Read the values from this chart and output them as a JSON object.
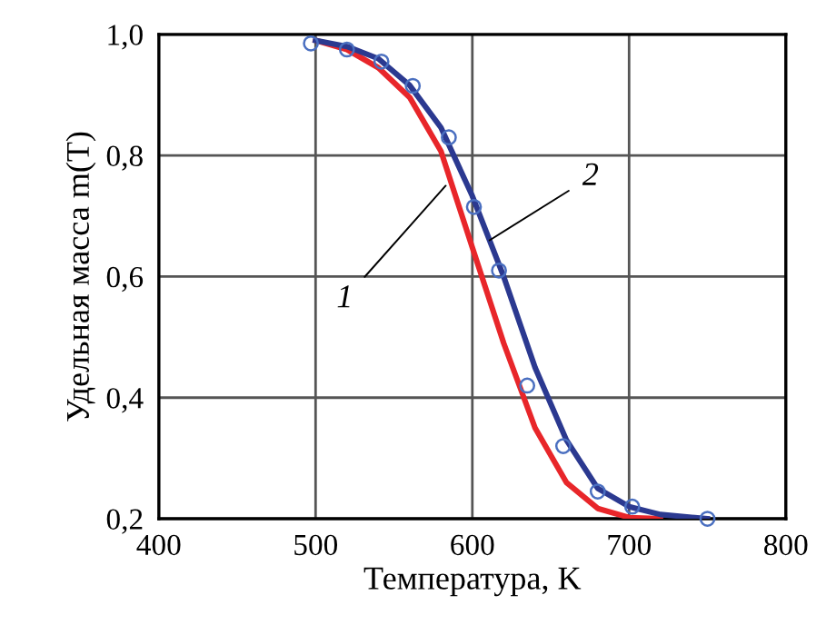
{
  "chart_data": {
    "type": "line",
    "xlabel": "Температура, K",
    "ylabel": "Удельная масса m(T)",
    "xlim": [
      400,
      800
    ],
    "xticks": [
      400,
      500,
      600,
      700,
      800
    ],
    "ylim": [
      0.2,
      1.0
    ],
    "yticks": [
      {
        "value": 0.2,
        "label": "0,2"
      },
      {
        "value": 0.4,
        "label": "0,4"
      },
      {
        "value": 0.6,
        "label": "0,6"
      },
      {
        "value": 0.8,
        "label": "0,8"
      },
      {
        "value": 1.0,
        "label": "1,0"
      }
    ],
    "grid": true,
    "legend": false,
    "series": [
      {
        "color": "#e8262a",
        "x": [
          500,
          520,
          540,
          560,
          580,
          600,
          620,
          640,
          660,
          680,
          700,
          720
        ],
        "values": [
          0.99,
          0.975,
          0.945,
          0.896,
          0.807,
          0.648,
          0.49,
          0.35,
          0.26,
          0.217,
          0.202,
          0.2
        ],
        "marker": "none"
      },
      {
        "color": "#2b3990",
        "x": [
          500,
          520,
          540,
          560,
          580,
          600,
          620,
          640,
          660,
          680,
          700,
          720,
          750
        ],
        "values": [
          0.99,
          0.98,
          0.96,
          0.916,
          0.846,
          0.733,
          0.6,
          0.45,
          0.33,
          0.25,
          0.22,
          0.207,
          0.2
        ],
        "marker": "none"
      },
      {
        "type": "scatter",
        "color": "#4a6fc0",
        "x": [
          497,
          520,
          542,
          562,
          585,
          601,
          617,
          635,
          658,
          680,
          702,
          750
        ],
        "values": [
          0.985,
          0.975,
          0.955,
          0.915,
          0.83,
          0.715,
          0.61,
          0.42,
          0.32,
          0.245,
          0.22,
          0.2
        ],
        "marker": "circle"
      }
    ],
    "annotations": [
      {
        "text": "1",
        "x": 583,
        "y": 0.75
      },
      {
        "text": "2",
        "x": 611,
        "y": 0.66
      }
    ]
  }
}
